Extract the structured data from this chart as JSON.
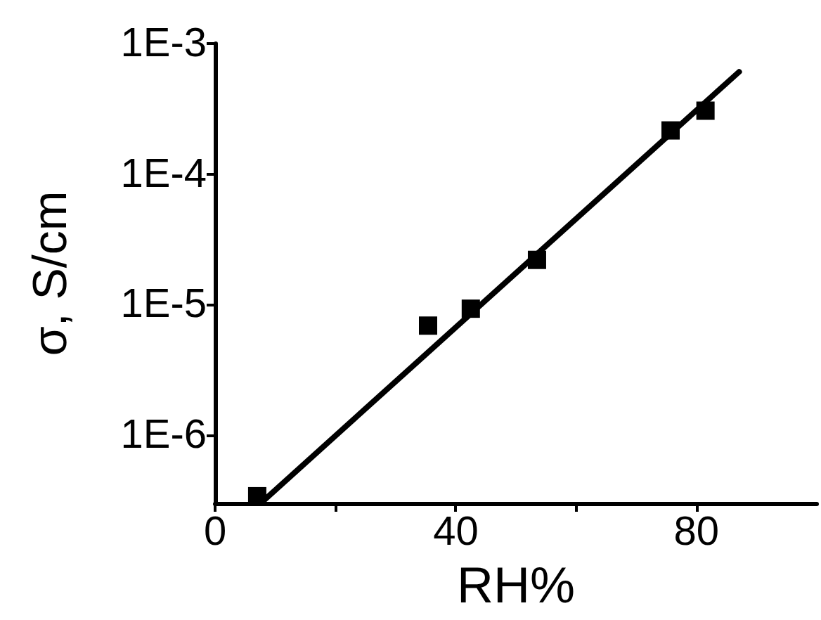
{
  "chart_data": {
    "type": "scatter",
    "xlabel": "RH%",
    "ylabel": "σ, S/cm",
    "log": "y",
    "xlim": [
      0,
      100
    ],
    "xticks": [
      0,
      {
        "value": 20,
        "label": null
      },
      40,
      {
        "value": 60,
        "label": null
      },
      80
    ],
    "ylim": [
      3e-07,
      0.001
    ],
    "yticks": [
      {
        "value": 0.001,
        "label": "1E-3"
      },
      {
        "value": 0.0001,
        "label": "1E-4"
      },
      {
        "value": 1e-05,
        "label": "1E-5"
      },
      {
        "value": 1e-06,
        "label": "1E-6"
      }
    ],
    "grid": false,
    "marker": "square",
    "series": [
      {
        "color": "#000000",
        "x": [
          7,
          35.4,
          42.5,
          53.5,
          75.7,
          81.5
        ],
        "values": [
          3.4e-07,
          6.9e-06,
          9.3e-06,
          2.2e-05,
          0.000216,
          0.000306
        ]
      },
      {
        "type": "line",
        "color": "#000000",
        "marker": "none",
        "line_style": "solid",
        "x": [
          7.7,
          87.1
        ],
        "values": [
          3.04e-07,
          0.000608
        ]
      }
    ]
  }
}
